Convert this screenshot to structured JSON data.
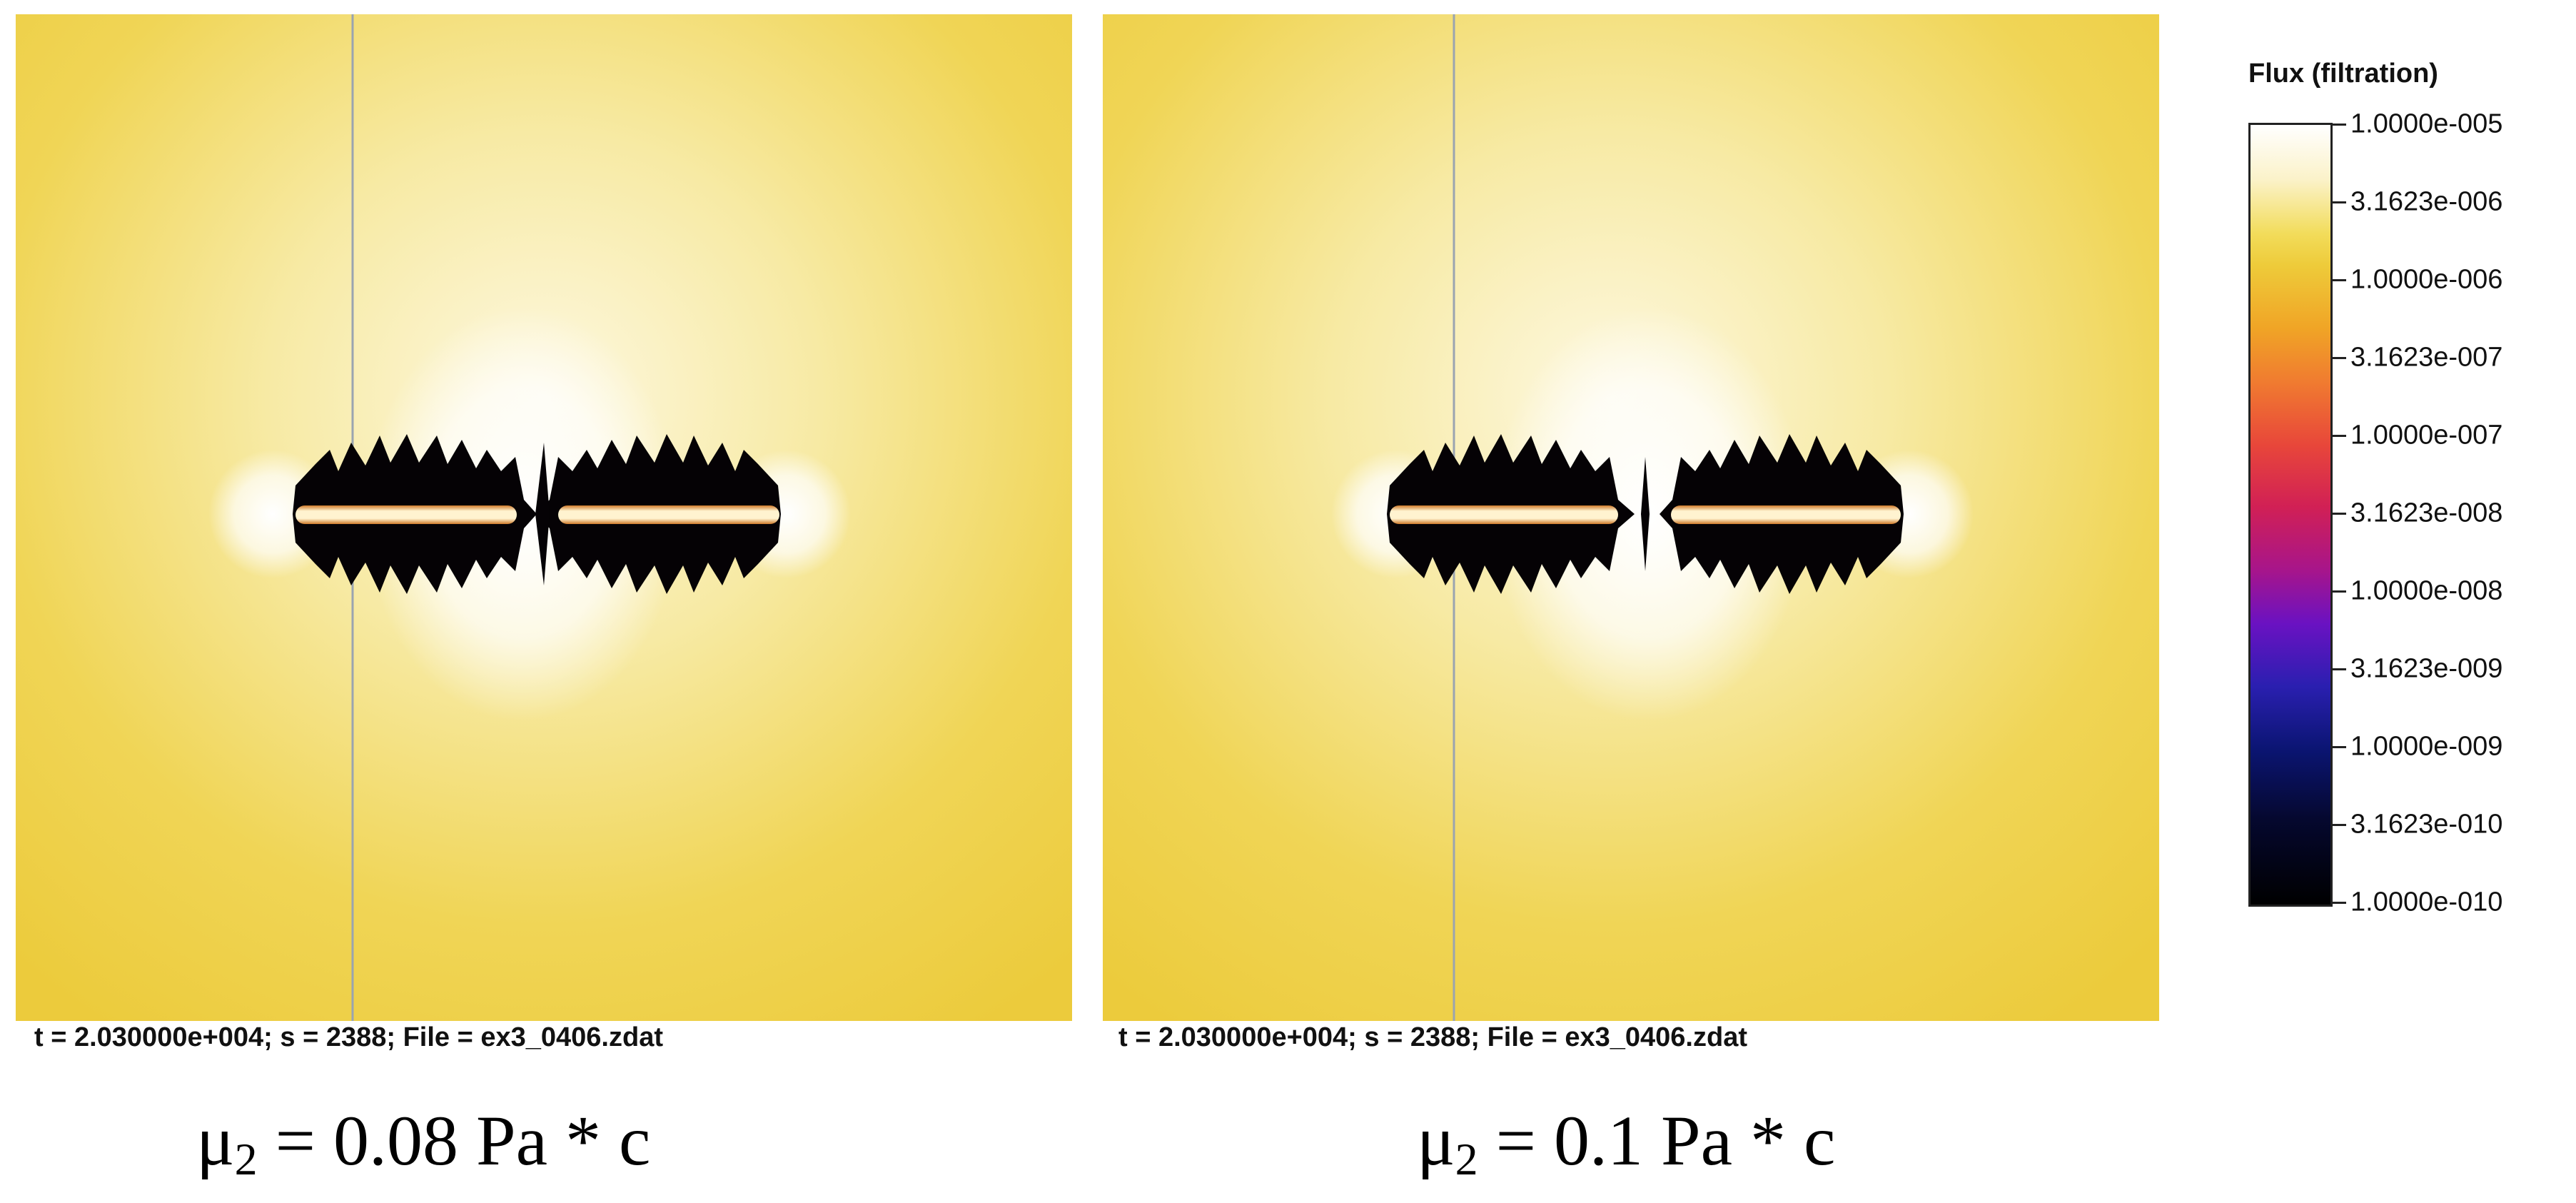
{
  "panels": [
    {
      "readout": "t = 2.030000e+004; s = 2388; File = ex3_0406.zdat",
      "caption": {
        "symbol": "μ",
        "subscript": "2",
        "text": " = 0.08 Pa * c"
      }
    },
    {
      "readout": "t = 2.030000e+004; s = 2388; File = ex3_0406.zdat",
      "caption": {
        "symbol": "μ",
        "subscript": "2",
        "text": " = 0.1 Pa * c"
      }
    }
  ],
  "colorbar": {
    "title": "Flux (filtration)",
    "scale": "log",
    "ticks": [
      "1.0000e-005",
      "3.1623e-006",
      "1.0000e-006",
      "3.1623e-007",
      "1.0000e-007",
      "3.1623e-008",
      "1.0000e-008",
      "3.1623e-009",
      "1.0000e-009",
      "3.1623e-010",
      "1.0000e-010"
    ],
    "colors": {
      "high": "#ffffff",
      "mid": "#eecb3a",
      "low": "#000000"
    }
  }
}
